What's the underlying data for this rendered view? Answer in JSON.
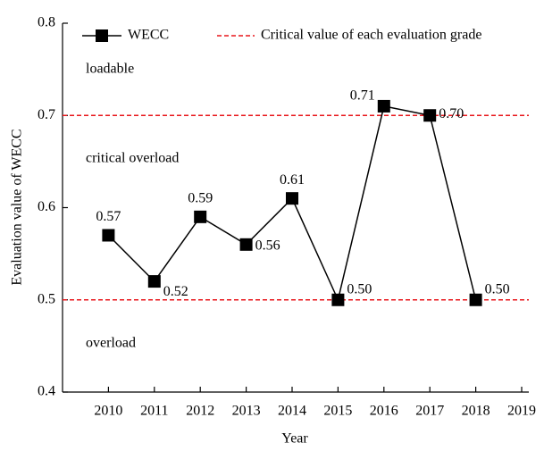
{
  "chart_data": {
    "type": "line",
    "x_label": "Year",
    "y_label": "Evaluation value of WECC",
    "x": [
      2010,
      2011,
      2012,
      2013,
      2014,
      2015,
      2016,
      2017,
      2018
    ],
    "series": [
      {
        "name": "WECC",
        "color": "#000000",
        "values": [
          0.57,
          0.52,
          0.59,
          0.56,
          0.61,
          0.5,
          0.71,
          0.7,
          0.5
        ],
        "value_labels": [
          "0.57",
          "0.52",
          "0.59",
          "0.56",
          "0.61",
          "0.50",
          "0.71",
          "0.70",
          "0.50"
        ]
      }
    ],
    "reference_lines": {
      "name": "Critical value of each evaluation grade",
      "color": "#e8161b",
      "values": [
        0.5,
        0.7
      ]
    },
    "annotations": [
      "loadable",
      "critical overload",
      "overload"
    ],
    "xlim": [
      2009,
      2019
    ],
    "ylim": [
      0.4,
      0.8
    ],
    "xticks": [
      2010,
      2011,
      2012,
      2013,
      2014,
      2015,
      2016,
      2017,
      2018,
      2019
    ],
    "yticks": [
      0.4,
      0.5,
      0.6,
      0.7,
      0.8
    ]
  }
}
